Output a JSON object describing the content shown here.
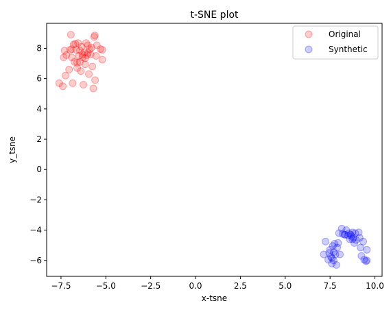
{
  "chart_data": {
    "type": "scatter",
    "title": "t-SNE plot",
    "xlabel": "x-tsne",
    "ylabel": "y_tsne",
    "xlim": [
      -8.3,
      10.4
    ],
    "ylim": [
      -7.05,
      9.65
    ],
    "xticks": [
      -7.5,
      -5.0,
      -2.5,
      0.0,
      2.5,
      5.0,
      7.5,
      10.0
    ],
    "xtick_labels": [
      "−7.5",
      "−5.0",
      "−2.5",
      "0.0",
      "2.5",
      "5.0",
      "7.5",
      "10.0"
    ],
    "yticks": [
      -6,
      -4,
      -2,
      0,
      2,
      4,
      6,
      8
    ],
    "ytick_labels": [
      "−6",
      "−4",
      "−2",
      "0",
      "2",
      "4",
      "6",
      "8"
    ],
    "grid": false,
    "legend_position": "top-right",
    "series": [
      {
        "name": "Original",
        "color": "#ff0000",
        "alpha": 0.2,
        "points": [
          [
            -7.6,
            5.7
          ],
          [
            -7.4,
            5.5
          ],
          [
            -7.35,
            7.4
          ],
          [
            -7.3,
            7.85
          ],
          [
            -7.25,
            6.2
          ],
          [
            -7.2,
            7.55
          ],
          [
            -7.05,
            6.6
          ],
          [
            -6.95,
            8.9
          ],
          [
            -6.9,
            7.95
          ],
          [
            -6.85,
            5.7
          ],
          [
            -6.75,
            7.1
          ],
          [
            -6.7,
            8.3
          ],
          [
            -6.65,
            7.9
          ],
          [
            -6.6,
            6.7
          ],
          [
            -6.55,
            8.35
          ],
          [
            -6.5,
            7.5
          ],
          [
            -6.45,
            7.1
          ],
          [
            -6.4,
            6.5
          ],
          [
            -6.35,
            8.1
          ],
          [
            -6.3,
            7.4
          ],
          [
            -6.25,
            5.6
          ],
          [
            -6.2,
            7.75
          ],
          [
            -6.15,
            6.95
          ],
          [
            -6.1,
            8.35
          ],
          [
            -6.05,
            7.55
          ],
          [
            -6.0,
            8.2
          ],
          [
            -5.95,
            6.3
          ],
          [
            -5.9,
            7.95
          ],
          [
            -5.85,
            7.6
          ],
          [
            -5.8,
            8.05
          ],
          [
            -5.75,
            6.8
          ],
          [
            -5.7,
            5.35
          ],
          [
            -5.65,
            8.75
          ],
          [
            -5.62,
            8.85
          ],
          [
            -5.6,
            5.9
          ],
          [
            -5.55,
            7.5
          ],
          [
            -5.5,
            8.2
          ],
          [
            -5.3,
            7.95
          ],
          [
            -5.2,
            7.9
          ],
          [
            -5.2,
            7.25
          ],
          [
            -6.8,
            8.25
          ],
          [
            -6.6,
            7.05
          ],
          [
            -6.3,
            7.6
          ],
          [
            -6.0,
            7.7
          ],
          [
            -7.0,
            7.9
          ],
          [
            -6.9,
            7.4
          ],
          [
            -6.45,
            7.85
          ],
          [
            -6.15,
            7.35
          ]
        ]
      },
      {
        "name": "Synthetic",
        "color": "#0000ff",
        "alpha": 0.2,
        "points": [
          [
            7.15,
            -5.6
          ],
          [
            7.25,
            -4.75
          ],
          [
            7.4,
            -5.95
          ],
          [
            7.45,
            -5.5
          ],
          [
            7.5,
            -5.3
          ],
          [
            7.55,
            -5.75
          ],
          [
            7.6,
            -6.2
          ],
          [
            7.65,
            -5.05
          ],
          [
            7.7,
            -5.45
          ],
          [
            7.75,
            -4.9
          ],
          [
            7.8,
            -5.6
          ],
          [
            7.85,
            -6.3
          ],
          [
            7.9,
            -5.15
          ],
          [
            7.95,
            -4.85
          ],
          [
            8.0,
            -4.2
          ],
          [
            8.05,
            -5.6
          ],
          [
            8.15,
            -3.9
          ],
          [
            8.2,
            -4.25
          ],
          [
            8.3,
            -4.3
          ],
          [
            8.4,
            -4.0
          ],
          [
            8.5,
            -4.35
          ],
          [
            8.55,
            -4.2
          ],
          [
            8.6,
            -4.6
          ],
          [
            8.65,
            -4.3
          ],
          [
            8.7,
            -4.4
          ],
          [
            8.75,
            -4.15
          ],
          [
            8.8,
            -4.5
          ],
          [
            8.85,
            -4.85
          ],
          [
            8.9,
            -4.2
          ],
          [
            8.95,
            -4.65
          ],
          [
            9.1,
            -4.15
          ],
          [
            9.15,
            -4.5
          ],
          [
            9.2,
            -5.15
          ],
          [
            9.25,
            -5.7
          ],
          [
            9.35,
            -4.75
          ],
          [
            9.4,
            -5.95
          ],
          [
            9.5,
            -6.05
          ],
          [
            9.55,
            -5.3
          ],
          [
            9.55,
            -6.0
          ],
          [
            7.6,
            -5.85
          ],
          [
            7.7,
            -6.0
          ],
          [
            8.35,
            -4.3
          ],
          [
            8.75,
            -4.6
          ]
        ]
      }
    ]
  }
}
